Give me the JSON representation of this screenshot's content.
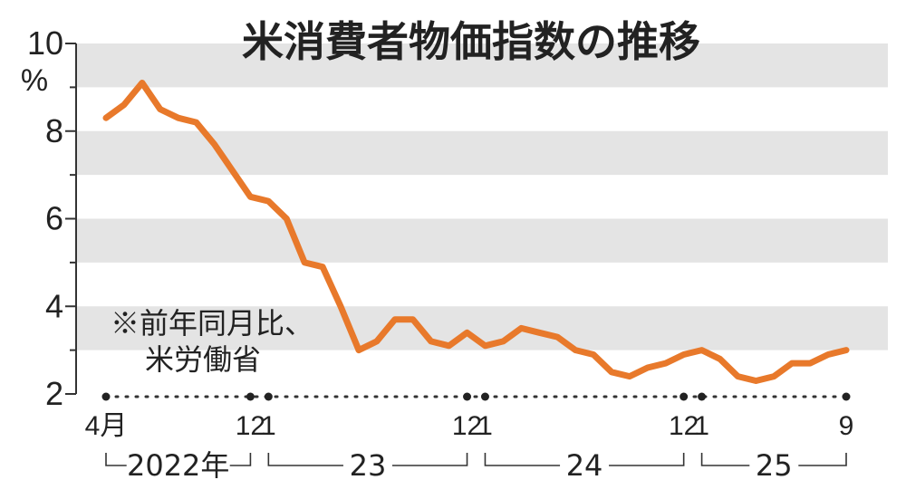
{
  "chart_data": {
    "type": "line",
    "title": "米消費者物価指数の推移",
    "unit": "%",
    "note_lines": [
      "※前年同月比、",
      "米労働省"
    ],
    "ylim": [
      2,
      10
    ],
    "yticks": [
      {
        "value": 2,
        "label": "2"
      },
      {
        "value": 4,
        "label": "4"
      },
      {
        "value": 6,
        "label": "6"
      },
      {
        "value": 8,
        "label": "8"
      },
      {
        "value": 10,
        "label": "10"
      }
    ],
    "x_range": [
      "2022-04",
      "2025-09"
    ],
    "x_ticks": [
      {
        "x": "2022-04",
        "label": "4月"
      },
      {
        "x": "2022-12",
        "label": "12"
      },
      {
        "x": "2023-01",
        "label": "1"
      },
      {
        "x": "2023-12",
        "label": "12"
      },
      {
        "x": "2024-01",
        "label": "1"
      },
      {
        "x": "2024-12",
        "label": "12"
      },
      {
        "x": "2025-01",
        "label": "1"
      },
      {
        "x": "2025-09",
        "label": "9"
      }
    ],
    "years": [
      {
        "label": "2022年",
        "start": "2022-04",
        "end": "2022-12"
      },
      {
        "label": "23",
        "start": "2023-01",
        "end": "2023-12"
      },
      {
        "label": "24",
        "start": "2024-01",
        "end": "2024-12"
      },
      {
        "label": "25",
        "start": "2025-01",
        "end": "2025-09"
      }
    ],
    "grid": "horizontal bands",
    "colors": {
      "line": "#e8792b",
      "band": "#e4e4e4",
      "text": "#222222"
    },
    "series": [
      {
        "x": [
          "2022-04",
          "2022-05",
          "2022-06",
          "2022-07",
          "2022-08",
          "2022-09",
          "2022-10",
          "2022-11",
          "2022-12",
          "2023-01",
          "2023-02",
          "2023-03",
          "2023-04",
          "2023-05",
          "2023-06",
          "2023-07",
          "2023-08",
          "2023-09",
          "2023-10",
          "2023-11",
          "2023-12",
          "2024-01",
          "2024-02",
          "2024-03",
          "2024-04",
          "2024-05",
          "2024-06",
          "2024-07",
          "2024-08",
          "2024-09",
          "2024-10",
          "2024-11",
          "2024-12",
          "2025-01",
          "2025-02",
          "2025-03",
          "2025-04",
          "2025-05",
          "2025-06",
          "2025-07",
          "2025-08",
          "2025-09"
        ],
        "values": [
          8.3,
          8.6,
          9.1,
          8.5,
          8.3,
          8.2,
          7.7,
          7.1,
          6.5,
          6.4,
          6.0,
          5.0,
          4.9,
          4.0,
          3.0,
          3.2,
          3.7,
          3.7,
          3.2,
          3.1,
          3.4,
          3.1,
          3.2,
          3.5,
          3.4,
          3.3,
          3.0,
          2.9,
          2.5,
          2.4,
          2.6,
          2.7,
          2.9,
          3.0,
          2.8,
          2.4,
          2.3,
          2.4,
          2.7,
          2.7,
          2.9,
          3.0
        ]
      }
    ]
  }
}
